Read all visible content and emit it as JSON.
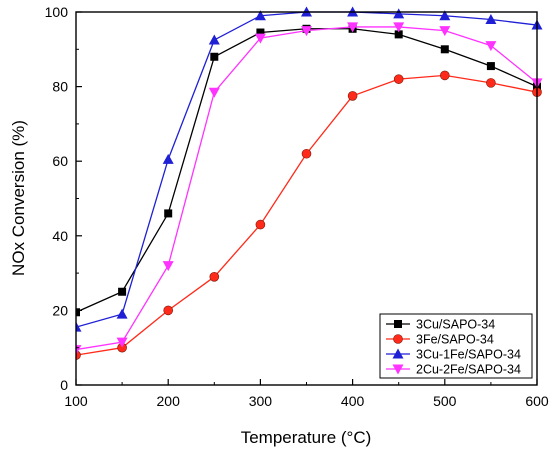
{
  "chart_data": {
    "type": "line",
    "title": "",
    "xlabel": "Temperature (°C)",
    "ylabel": "NOx Conversion (%)",
    "xlim": [
      100,
      600
    ],
    "ylim": [
      0,
      100
    ],
    "xticks": [
      100,
      200,
      300,
      400,
      500,
      600
    ],
    "yticks": [
      0,
      20,
      40,
      60,
      80,
      100
    ],
    "grid": false,
    "legend_position": "bottom-right",
    "x": [
      100,
      150,
      200,
      250,
      300,
      350,
      400,
      450,
      500,
      550,
      600
    ],
    "series": [
      {
        "name": "3Cu/SAPO-34",
        "marker": "square",
        "color": "#000000",
        "values": [
          19.5,
          25,
          46,
          88,
          94.5,
          95.5,
          95.5,
          94,
          90,
          85.5,
          80
        ]
      },
      {
        "name": "3Fe/SAPO-34",
        "marker": "circle",
        "color": "#ff2a1a",
        "values": [
          8,
          10,
          20,
          29,
          43,
          62,
          77.5,
          82,
          83,
          81,
          78.5
        ]
      },
      {
        "name": "3Cu-1Fe/SAPO-34",
        "marker": "triangle-up",
        "color": "#1f1fd6",
        "values": [
          15.5,
          19,
          60.5,
          92.5,
          99,
          100,
          100,
          99.5,
          99,
          98,
          96.5
        ]
      },
      {
        "name": "2Cu-2Fe/SAPO-34",
        "marker": "triangle-down",
        "color": "#ff33ff",
        "values": [
          9.5,
          11.5,
          32,
          78.5,
          93,
          95,
          96,
          96,
          95,
          91,
          81
        ]
      }
    ]
  }
}
